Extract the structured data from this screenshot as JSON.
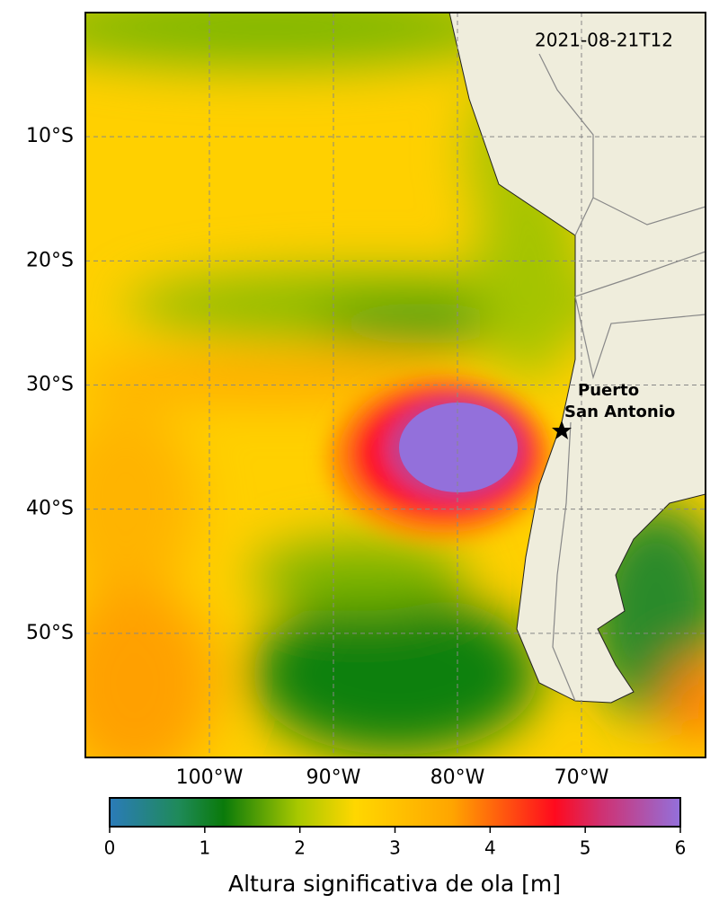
{
  "map": {
    "timestamp": "2021-08-21T12",
    "xlim": [
      -110,
      -60
    ],
    "ylim": [
      -60,
      0
    ],
    "xticks": [
      {
        "value": -100,
        "label": "100°W"
      },
      {
        "value": -90,
        "label": "90°W"
      },
      {
        "value": -80,
        "label": "80°W"
      },
      {
        "value": -70,
        "label": "70°W"
      }
    ],
    "yticks": [
      {
        "value": -10,
        "label": "10°S"
      },
      {
        "value": -20,
        "label": "20°S"
      },
      {
        "value": -30,
        "label": "30°S"
      },
      {
        "value": -40,
        "label": "40°S"
      },
      {
        "value": -50,
        "label": "50°S"
      }
    ],
    "location": [
      "Puerto",
      "San Antonio"
    ],
    "grid": true
  },
  "colorbar": {
    "label": "Altura significativa de ola [m]",
    "lim": [
      0,
      6
    ],
    "ticks": [
      0,
      1,
      2,
      3,
      4,
      5,
      6
    ]
  }
}
